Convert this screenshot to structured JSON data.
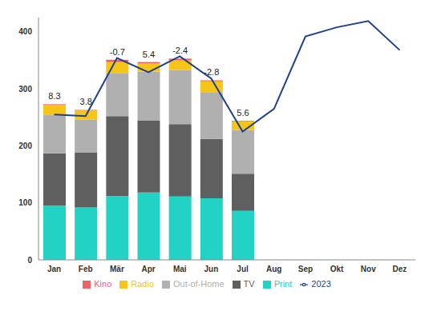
{
  "chart_data": {
    "type": "bar",
    "stacked": true,
    "legend": "bottom",
    "grid": false,
    "categories": [
      "Jan",
      "Feb",
      "Mär",
      "Apr",
      "Mai",
      "Jun",
      "Jul",
      "Aug",
      "Sep",
      "Okt",
      "Nov",
      "Dez"
    ],
    "ylim": [
      0,
      425
    ],
    "yticks": [
      0,
      100,
      200,
      300,
      400
    ],
    "series": [
      {
        "name": "Kino",
        "type": "bar",
        "color": "#f0606a",
        "values": [
          1,
          1,
          4,
          2,
          3,
          2,
          1,
          null,
          null,
          null,
          null,
          null
        ]
      },
      {
        "name": "Radio",
        "type": "bar",
        "color": "#f5c518",
        "values": [
          17,
          16,
          19,
          15,
          17,
          20,
          15,
          null,
          null,
          null,
          null,
          null
        ]
      },
      {
        "name": "Out-of-Home",
        "type": "bar",
        "color": "#b0b0b0",
        "values": [
          68,
          58,
          76,
          86,
          95,
          81,
          77,
          null,
          null,
          null,
          null,
          null
        ]
      },
      {
        "name": "TV",
        "type": "bar",
        "color": "#5f5f5f",
        "values": [
          92,
          96,
          140,
          126,
          127,
          104,
          65,
          null,
          null,
          null,
          null,
          null
        ]
      },
      {
        "name": "Print",
        "type": "bar",
        "color": "#22d3c5",
        "values": [
          95,
          92,
          112,
          118,
          111,
          108,
          86,
          null,
          null,
          null,
          null,
          null
        ]
      },
      {
        "name": "2023",
        "type": "line",
        "color": "#1f3f8f",
        "values": [
          255,
          252,
          354,
          329,
          357,
          318,
          225,
          265,
          392,
          408,
          419,
          368
        ]
      }
    ],
    "change_values": [
      8.3,
      3.8,
      -0.7,
      5.4,
      -2.4,
      -2.8,
      5.6,
      null,
      null,
      null,
      null,
      null
    ]
  }
}
